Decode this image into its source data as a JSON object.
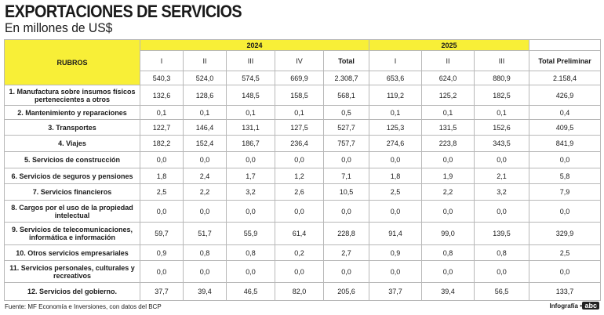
{
  "header": {
    "title": "EXPORTACIONES DE SERVICIOS",
    "subtitle": "En millones de US$"
  },
  "table": {
    "row_header": "RUBROS",
    "groups": [
      {
        "label": "2024",
        "columns": [
          "I",
          "II",
          "III",
          "IV",
          "Total"
        ]
      },
      {
        "label": "2025",
        "columns": [
          "I",
          "II",
          "III"
        ]
      }
    ],
    "last_column": "Total Preliminar",
    "totals": [
      "540,3",
      "524,0",
      "574,5",
      "669,9",
      "2.308,7",
      "653,6",
      "624,0",
      "880,9",
      "2.158,4"
    ],
    "rows": [
      {
        "label": "1.  Manufactura sobre insumos físicos pertenecientes a otros",
        "values": [
          "132,6",
          "128,6",
          "148,5",
          "158,5",
          "568,1",
          "119,2",
          "125,2",
          "182,5",
          "426,9"
        ]
      },
      {
        "label": "2.  Mantenimiento y reparaciones",
        "values": [
          "0,1",
          "0,1",
          "0,1",
          "0,1",
          "0,5",
          "0,1",
          "0,1",
          "0,1",
          "0,4"
        ]
      },
      {
        "label": "3.  Transportes",
        "values": [
          "122,7",
          "146,4",
          "131,1",
          "127,5",
          "527,7",
          "125,3",
          "131,5",
          "152,6",
          "409,5"
        ]
      },
      {
        "label": "4.  Viajes",
        "values": [
          "182,2",
          "152,4",
          "186,7",
          "236,4",
          "757,7",
          "274,6",
          "223,8",
          "343,5",
          "841,9"
        ]
      },
      {
        "label": "5.  Servicios de construcción",
        "values": [
          "0,0",
          "0,0",
          "0,0",
          "0,0",
          "0,0",
          "0,0",
          "0,0",
          "0,0",
          "0,0"
        ]
      },
      {
        "label": "6.  Servicios de seguros y pensiones",
        "values": [
          "1,8",
          "2,4",
          "1,7",
          "1,2",
          "7,1",
          "1,8",
          "1,9",
          "2,1",
          "5,8"
        ]
      },
      {
        "label": "7.  Servicios financieros",
        "values": [
          "2,5",
          "2,2",
          "3,2",
          "2,6",
          "10,5",
          "2,5",
          "2,2",
          "3,2",
          "7,9"
        ]
      },
      {
        "label": "8.  Cargos por el uso de la propiedad intelectual",
        "values": [
          "0,0",
          "0,0",
          "0,0",
          "0,0",
          "0,0",
          "0,0",
          "0,0",
          "0,0",
          "0,0"
        ]
      },
      {
        "label": "9.  Servicios de telecomunicaciones, informática e información",
        "values": [
          "59,7",
          "51,7",
          "55,9",
          "61,4",
          "228,8",
          "91,4",
          "99,0",
          "139,5",
          "329,9"
        ]
      },
      {
        "label": "10.  Otros servicios empresariales",
        "values": [
          "0,9",
          "0,8",
          "0,8",
          "0,2",
          "2,7",
          "0,9",
          "0,8",
          "0,8",
          "2,5"
        ]
      },
      {
        "label": "11.  Servicios personales, culturales y recreativos",
        "values": [
          "0,0",
          "0,0",
          "0,0",
          "0,0",
          "0,0",
          "0,0",
          "0,0",
          "0,0",
          "0,0"
        ]
      },
      {
        "label": "12.  Servicios del gobierno.",
        "values": [
          "37,7",
          "39,4",
          "46,5",
          "82,0",
          "205,6",
          "37,7",
          "39,4",
          "56,5",
          "133,7"
        ]
      }
    ]
  },
  "footer": {
    "source": "Fuente: MF Economía e Inversiones, con datos del BCP",
    "credit": "Infografía •",
    "logo": "abc"
  }
}
